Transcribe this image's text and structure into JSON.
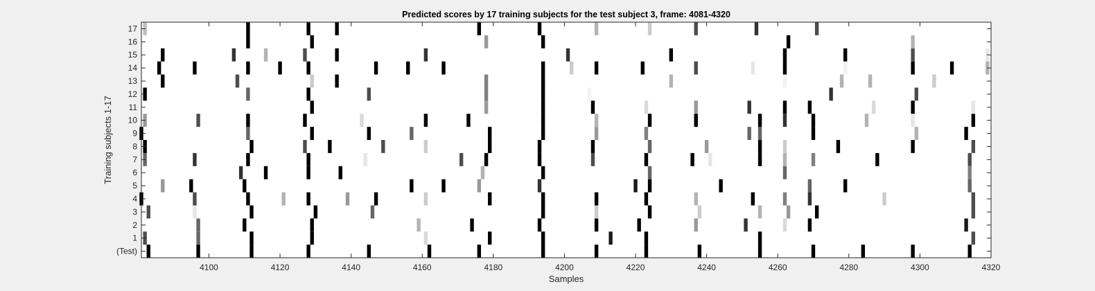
{
  "chart_data": {
    "type": "heatmap",
    "title": "Predicted scores by 17 training subjects for the test subject 3, frame: 4081-4320",
    "xlabel": "Samples",
    "ylabel": "Training subjects 1-17",
    "xlim": [
      4081,
      4320
    ],
    "xticks": [
      4100,
      4120,
      4140,
      4160,
      4180,
      4200,
      4220,
      4240,
      4260,
      4280,
      4300,
      4320
    ],
    "rows": [
      "(Test)",
      "1",
      "2",
      "3",
      "4",
      "5",
      "6",
      "7",
      "8",
      "9",
      "10",
      "11",
      "12",
      "13",
      "14",
      "15",
      "16",
      "17"
    ],
    "grid": false,
    "colormap": "gray, 0 = white, 1 = black",
    "series": [
      {
        "row": "(Test)",
        "marks": [
          [
            4083,
            1
          ],
          [
            4097,
            1
          ],
          [
            4112,
            1
          ],
          [
            4128,
            1
          ],
          [
            4145,
            1
          ],
          [
            4162,
            1
          ],
          [
            4176,
            1
          ],
          [
            4194,
            1
          ],
          [
            4209,
            1
          ],
          [
            4223,
            1
          ],
          [
            4238,
            1
          ],
          [
            4255,
            1
          ],
          [
            4270,
            1
          ],
          [
            4284,
            1
          ],
          [
            4298,
            1
          ],
          [
            4314,
            1
          ]
        ]
      },
      {
        "row": "1",
        "marks": [
          [
            4082,
            0.7
          ],
          [
            4097,
            0.6
          ],
          [
            4112,
            1
          ],
          [
            4129,
            1
          ],
          [
            4161,
            0.15
          ],
          [
            4179,
            1
          ],
          [
            4194,
            1
          ],
          [
            4213,
            0.9
          ],
          [
            4223,
            1
          ],
          [
            4255,
            1
          ],
          [
            4315,
            0.7
          ]
        ]
      },
      {
        "row": "2",
        "marks": [
          [
            4097,
            0.6
          ],
          [
            4110,
            1
          ],
          [
            4129,
            1
          ],
          [
            4159,
            0.3
          ],
          [
            4174,
            1
          ],
          [
            4193,
            1
          ],
          [
            4209,
            1
          ],
          [
            4221,
            1
          ],
          [
            4237,
            0.4
          ],
          [
            4251,
            0.8
          ],
          [
            4262,
            0.15
          ],
          [
            4269,
            1
          ],
          [
            4313,
            0.9
          ]
        ]
      },
      {
        "row": "3",
        "marks": [
          [
            4083,
            0.7
          ],
          [
            4096,
            0.1
          ],
          [
            4112,
            1
          ],
          [
            4130,
            1
          ],
          [
            4146,
            0.6
          ],
          [
            4194,
            1
          ],
          [
            4209,
            0.2
          ],
          [
            4224,
            1
          ],
          [
            4238,
            0.2
          ],
          [
            4255,
            0.3
          ],
          [
            4263,
            0.4
          ],
          [
            4271,
            1
          ],
          [
            4315,
            0.7
          ]
        ]
      },
      {
        "row": "4",
        "marks": [
          [
            4081,
            1
          ],
          [
            4096,
            0.7
          ],
          [
            4111,
            1
          ],
          [
            4121,
            0.3
          ],
          [
            4128,
            1
          ],
          [
            4139,
            0.4
          ],
          [
            4147,
            1
          ],
          [
            4161,
            0.2
          ],
          [
            4179,
            1
          ],
          [
            4194,
            1
          ],
          [
            4209,
            1
          ],
          [
            4223,
            1
          ],
          [
            4237,
            0.3
          ],
          [
            4253,
            1
          ],
          [
            4262,
            0.5
          ],
          [
            4269,
            0.8
          ],
          [
            4290,
            0.2
          ],
          [
            4315,
            0.7
          ]
        ]
      },
      {
        "row": "5",
        "marks": [
          [
            4087,
            0.4
          ],
          [
            4095,
            1
          ],
          [
            4110,
            1
          ],
          [
            4157,
            1
          ],
          [
            4166,
            1
          ],
          [
            4176,
            0.4
          ],
          [
            4193,
            0.8
          ],
          [
            4220,
            0.9
          ],
          [
            4224,
            1
          ],
          [
            4244,
            1
          ],
          [
            4269,
            0.6
          ],
          [
            4279,
            1
          ],
          [
            4314,
            0.6
          ]
        ]
      },
      {
        "row": "6",
        "marks": [
          [
            4109,
            0.8
          ],
          [
            4116,
            1
          ],
          [
            4128,
            1
          ],
          [
            4137,
            1
          ],
          [
            4177,
            0.3
          ],
          [
            4194,
            1
          ],
          [
            4224,
            0.6
          ],
          [
            4262,
            0.6
          ],
          [
            4314,
            0.5
          ]
        ]
      },
      {
        "row": "7",
        "marks": [
          [
            4082,
            0.6
          ],
          [
            4096,
            0.8
          ],
          [
            4111,
            1
          ],
          [
            4128,
            1
          ],
          [
            4144,
            0.1
          ],
          [
            4171,
            0.7
          ],
          [
            4178,
            1
          ],
          [
            4193,
            1
          ],
          [
            4208,
            0.7
          ],
          [
            4223,
            1
          ],
          [
            4236,
            1
          ],
          [
            4241,
            0.1
          ],
          [
            4255,
            1
          ],
          [
            4262,
            0.3
          ],
          [
            4270,
            0.5
          ],
          [
            4288,
            1
          ],
          [
            4314,
            0.7
          ]
        ]
      },
      {
        "row": "8",
        "marks": [
          [
            4082,
            1
          ],
          [
            4112,
            1
          ],
          [
            4127,
            0.7
          ],
          [
            4134,
            1
          ],
          [
            4149,
            0.7
          ],
          [
            4161,
            0.2
          ],
          [
            4179,
            1
          ],
          [
            4193,
            1
          ],
          [
            4208,
            1
          ],
          [
            4224,
            0.6
          ],
          [
            4240,
            0.4
          ],
          [
            4255,
            1
          ],
          [
            4262,
            0.2
          ],
          [
            4277,
            1
          ],
          [
            4298,
            1
          ],
          [
            4315,
            0.7
          ]
        ]
      },
      {
        "row": "9",
        "marks": [
          [
            4081,
            1
          ],
          [
            4111,
            0.6
          ],
          [
            4129,
            1
          ],
          [
            4145,
            1
          ],
          [
            4157,
            0.6
          ],
          [
            4179,
            1
          ],
          [
            4194,
            1
          ],
          [
            4209,
            0.4
          ],
          [
            4223,
            0.5
          ],
          [
            4252,
            0.6
          ],
          [
            4255,
            0.6
          ],
          [
            4270,
            1
          ],
          [
            4299,
            0.3
          ],
          [
            4313,
            1
          ]
        ]
      },
      {
        "row": "10",
        "marks": [
          [
            4082,
            0.4
          ],
          [
            4097,
            0.7
          ],
          [
            4111,
            1
          ],
          [
            4127,
            1
          ],
          [
            4143,
            0.15
          ],
          [
            4161,
            1
          ],
          [
            4173,
            1
          ],
          [
            4194,
            1
          ],
          [
            4209,
            0.3
          ],
          [
            4224,
            1
          ],
          [
            4237,
            1
          ],
          [
            4255,
            1
          ],
          [
            4262,
            0.8
          ],
          [
            4270,
            1
          ],
          [
            4285,
            0.3
          ],
          [
            4298,
            0.1
          ],
          [
            4315,
            1
          ]
        ]
      },
      {
        "row": "11",
        "marks": [
          [
            4129,
            1
          ],
          [
            4178,
            0.4
          ],
          [
            4194,
            1
          ],
          [
            4208,
            1
          ],
          [
            4223,
            0.15
          ],
          [
            4237,
            0.4
          ],
          [
            4252,
            0.8
          ],
          [
            4262,
            1
          ],
          [
            4269,
            1
          ],
          [
            4287,
            0.15
          ],
          [
            4298,
            1
          ],
          [
            4315,
            0.1
          ]
        ]
      },
      {
        "row": "12",
        "marks": [
          [
            4082,
            1
          ],
          [
            4111,
            0.6
          ],
          [
            4128,
            1
          ],
          [
            4145,
            0.7
          ],
          [
            4178,
            0.5
          ],
          [
            4194,
            1
          ],
          [
            4207,
            0.05
          ],
          [
            4275,
            0.8
          ],
          [
            4299,
            0.7
          ]
        ]
      },
      {
        "row": "13",
        "marks": [
          [
            4087,
            1
          ],
          [
            4108,
            0.7
          ],
          [
            4129,
            0.2
          ],
          [
            4136,
            1
          ],
          [
            4178,
            0.5
          ],
          [
            4194,
            1
          ],
          [
            4230,
            0.3
          ],
          [
            4262,
            0.05
          ],
          [
            4278,
            0.3
          ],
          [
            4286,
            0.3
          ],
          [
            4304,
            0.2
          ]
        ]
      },
      {
        "row": "14",
        "marks": [
          [
            4086,
            1
          ],
          [
            4096,
            1
          ],
          [
            4111,
            1
          ],
          [
            4120,
            1
          ],
          [
            4128,
            1
          ],
          [
            4147,
            1
          ],
          [
            4156,
            1
          ],
          [
            4166,
            1
          ],
          [
            4194,
            1
          ],
          [
            4202,
            0.2
          ],
          [
            4209,
            1
          ],
          [
            4222,
            1
          ],
          [
            4237,
            0.7
          ],
          [
            4253,
            0.1
          ],
          [
            4262,
            1
          ],
          [
            4279,
            0.05
          ],
          [
            4298,
            1
          ],
          [
            4309,
            1
          ],
          [
            4319,
            0.3
          ]
        ]
      },
      {
        "row": "15",
        "marks": [
          [
            4087,
            1
          ],
          [
            4107,
            0.8
          ],
          [
            4116,
            0.3
          ],
          [
            4127,
            0.7
          ],
          [
            4136,
            1
          ],
          [
            4161,
            0.8
          ],
          [
            4201,
            0.8
          ],
          [
            4230,
            1
          ],
          [
            4262,
            1
          ],
          [
            4279,
            1
          ],
          [
            4298,
            0.7
          ],
          [
            4319,
            0.1
          ]
        ]
      },
      {
        "row": "16",
        "marks": [
          [
            4111,
            1
          ],
          [
            4129,
            1
          ],
          [
            4178,
            0.4
          ],
          [
            4194,
            1
          ],
          [
            4263,
            1
          ],
          [
            4298,
            0.3
          ]
        ]
      },
      {
        "row": "17",
        "marks": [
          [
            4082,
            0.25
          ],
          [
            4111,
            1
          ],
          [
            4128,
            1
          ],
          [
            4136,
            1
          ],
          [
            4176,
            1
          ],
          [
            4193,
            1
          ],
          [
            4209,
            0.3
          ],
          [
            4224,
            0.2
          ],
          [
            4237,
            0.7
          ],
          [
            4254,
            0.8
          ],
          [
            4271,
            0.7
          ]
        ]
      }
    ]
  }
}
